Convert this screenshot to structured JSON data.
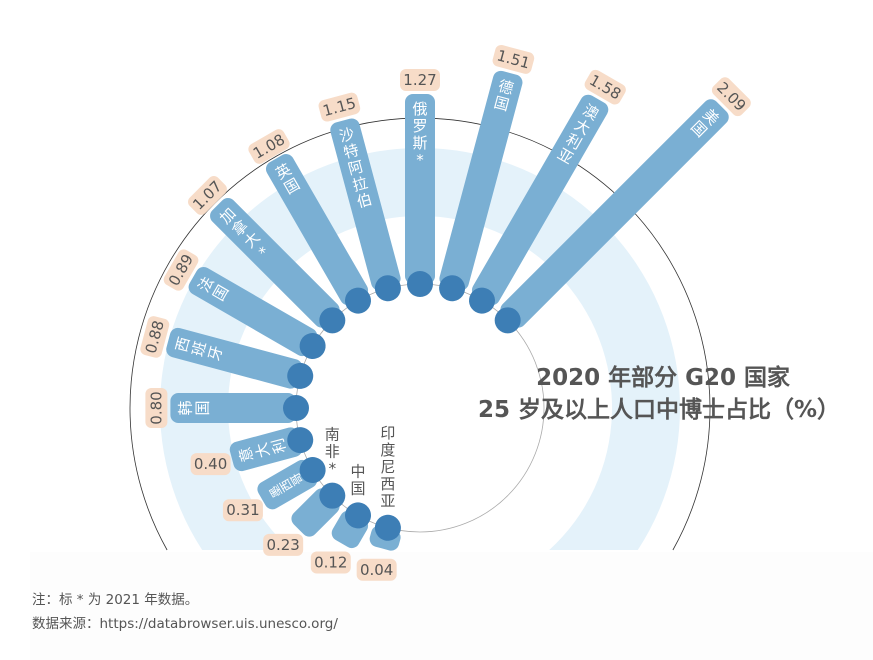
{
  "chart_data": {
    "type": "radial-bar",
    "title_line1": "2020 年部分 G20 国家",
    "title_line2": "25 岁及以上人口中博士占比（%）",
    "categories": [
      "美国",
      "澳大利亚",
      "德国",
      "俄罗斯*",
      "沙特阿拉伯",
      "英国",
      "加拿大*",
      "法国",
      "西班牙",
      "韩国",
      "意大利",
      "墨西哥",
      "南非*",
      "中国",
      "印度尼西亚"
    ],
    "values": [
      2.09,
      1.58,
      1.51,
      1.27,
      1.15,
      1.08,
      1.07,
      0.89,
      0.88,
      0.8,
      0.4,
      0.31,
      0.23,
      0.12,
      0.04
    ],
    "value_labels": [
      "2.09",
      "1.58",
      "1.51",
      "1.27",
      "1.15",
      "1.08",
      "1.07",
      "0.89",
      "0.88",
      "0.80",
      "0.40",
      "0.31",
      "0.23",
      "0.12",
      "0.04"
    ],
    "colors": {
      "bar": "#7aafd3",
      "dot": "#3d7eb5",
      "label_bg": "#f7dcc8",
      "ring": "#e4f2fa",
      "text": "#555555"
    }
  },
  "footer": {
    "note": "注：标 * 为 2021 年数据。",
    "source": "数据来源：https://databrowser.uis.unesco.org/"
  }
}
